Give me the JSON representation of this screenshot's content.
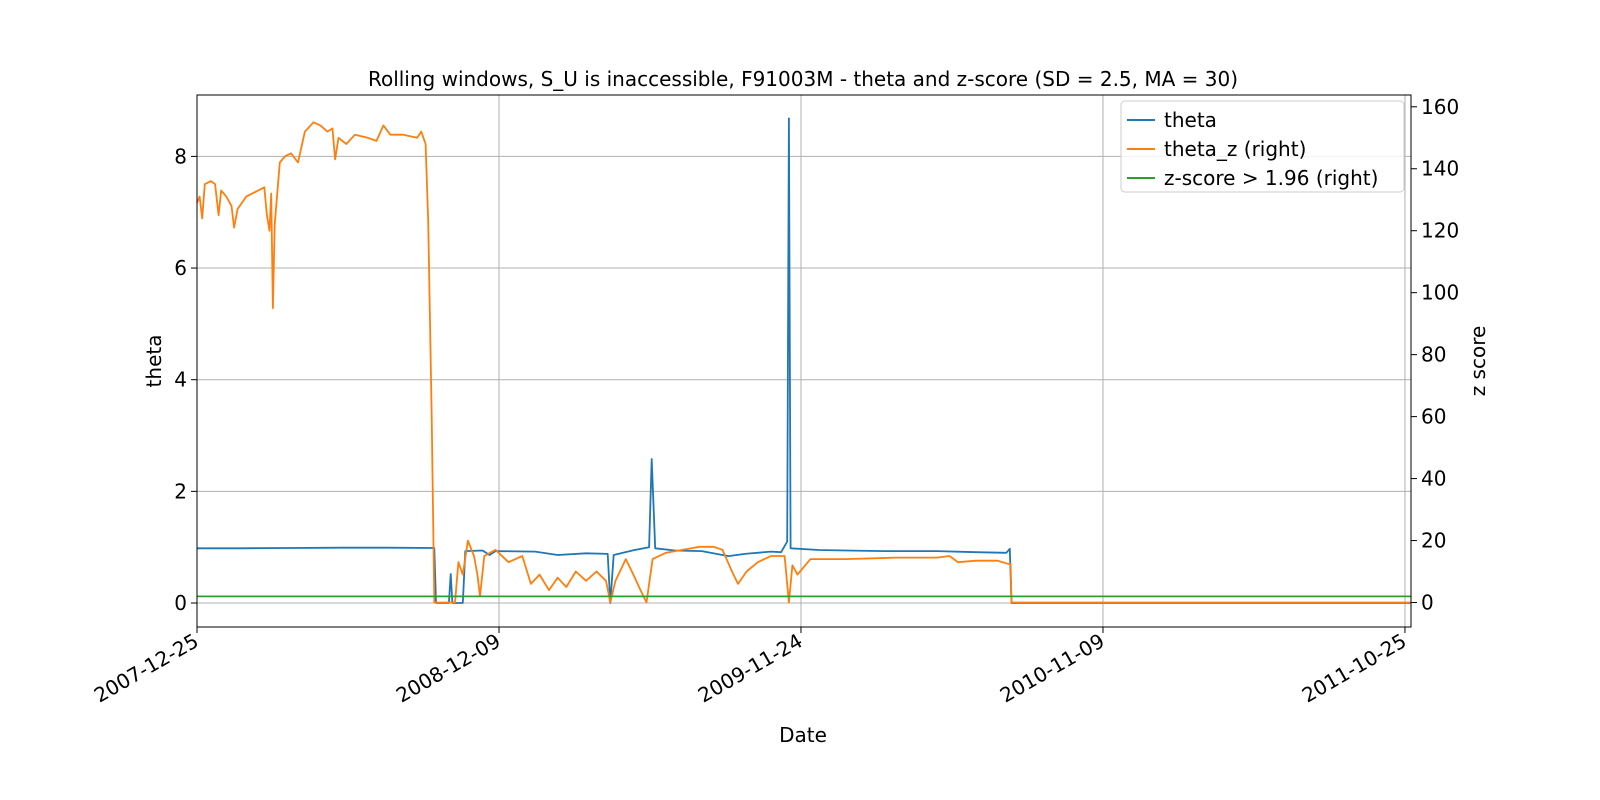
{
  "chart_data": {
    "type": "line",
    "title": "Rolling windows, S_U is inaccessible, F91003M - theta and z-score (SD = 2.5, MA = 30)",
    "xlabel": "Date",
    "ylabel_left": "theta",
    "ylabel_right": "z score",
    "x_ticks": [
      "2007-12-25",
      "2008-12-09",
      "2009-11-24",
      "2010-11-09",
      "2011-10-25"
    ],
    "x_range": [
      "2007-12-25",
      "2011-11-01"
    ],
    "y_left_ticks": [
      "0",
      "2",
      "4",
      "6",
      "8"
    ],
    "y_left_range": [
      -0.43,
      9.1
    ],
    "y_right_ticks": [
      "0",
      "20",
      "40",
      "60",
      "80",
      "100",
      "120",
      "140",
      "160"
    ],
    "y_right_range": [
      -7.9,
      163.8
    ],
    "grid": true,
    "legend_position": "top-right",
    "colors": {
      "theta": "#1f77b4",
      "theta_z": "#ff7f0e",
      "threshold": "#2ca02c"
    },
    "series": [
      {
        "name": "theta",
        "axis": "left",
        "points": [
          [
            "2007-12-25",
            0.98
          ],
          [
            "2008-02-10",
            0.98
          ],
          [
            "2008-04-10",
            0.985
          ],
          [
            "2008-06-10",
            0.99
          ],
          [
            "2008-08-01",
            0.99
          ],
          [
            "2008-09-25",
            0.985
          ],
          [
            "2008-09-27",
            0.0
          ],
          [
            "2008-10-12",
            0.0
          ],
          [
            "2008-10-14",
            0.52
          ],
          [
            "2008-10-16",
            0.0
          ],
          [
            "2008-10-28",
            0.0
          ],
          [
            "2008-10-31",
            0.93
          ],
          [
            "2008-11-20",
            0.94
          ],
          [
            "2008-11-28",
            0.86
          ],
          [
            "2008-12-05",
            0.93
          ],
          [
            "2009-01-20",
            0.92
          ],
          [
            "2009-02-15",
            0.86
          ],
          [
            "2009-03-20",
            0.89
          ],
          [
            "2009-04-14",
            0.88
          ],
          [
            "2009-04-17",
            0.0
          ],
          [
            "2009-04-21",
            0.86
          ],
          [
            "2009-05-15",
            0.95
          ],
          [
            "2009-06-01",
            1.0
          ],
          [
            "2009-06-04",
            2.58
          ],
          [
            "2009-06-08",
            0.98
          ],
          [
            "2009-07-01",
            0.94
          ],
          [
            "2009-08-01",
            0.93
          ],
          [
            "2009-09-01",
            0.84
          ],
          [
            "2009-09-20",
            0.88
          ],
          [
            "2009-10-20",
            0.92
          ],
          [
            "2009-11-01",
            0.91
          ],
          [
            "2009-11-08",
            1.1
          ],
          [
            "2009-11-10",
            8.68
          ],
          [
            "2009-11-12",
            0.98
          ],
          [
            "2009-12-15",
            0.95
          ],
          [
            "2010-01-15",
            0.94
          ],
          [
            "2010-03-01",
            0.93
          ],
          [
            "2010-05-01",
            0.93
          ],
          [
            "2010-06-15",
            0.91
          ],
          [
            "2010-07-20",
            0.9
          ],
          [
            "2010-07-24",
            0.97
          ],
          [
            "2010-07-26",
            0.0
          ],
          [
            "2011-11-01",
            0.0
          ]
        ]
      },
      {
        "name": "theta_z (right)",
        "axis": "right",
        "points": [
          [
            "2007-12-25",
            129
          ],
          [
            "2007-12-28",
            131
          ],
          [
            "2007-12-31",
            124
          ],
          [
            "2008-01-03",
            135
          ],
          [
            "2008-01-10",
            136
          ],
          [
            "2008-01-15",
            135
          ],
          [
            "2008-01-19",
            125
          ],
          [
            "2008-01-22",
            133
          ],
          [
            "2008-01-28",
            131
          ],
          [
            "2008-02-03",
            128
          ],
          [
            "2008-02-06",
            121
          ],
          [
            "2008-02-10",
            127
          ],
          [
            "2008-02-20",
            131
          ],
          [
            "2008-03-05",
            133
          ],
          [
            "2008-03-12",
            134
          ],
          [
            "2008-03-15",
            125
          ],
          [
            "2008-03-18",
            120
          ],
          [
            "2008-03-20",
            132
          ],
          [
            "2008-03-22",
            95
          ],
          [
            "2008-03-24",
            122
          ],
          [
            "2008-03-30",
            142
          ],
          [
            "2008-04-05",
            144
          ],
          [
            "2008-04-12",
            145
          ],
          [
            "2008-04-20",
            142
          ],
          [
            "2008-04-28",
            152
          ],
          [
            "2008-05-08",
            155
          ],
          [
            "2008-05-16",
            154
          ],
          [
            "2008-05-24",
            152
          ],
          [
            "2008-05-30",
            153
          ],
          [
            "2008-06-02",
            143
          ],
          [
            "2008-06-06",
            150
          ],
          [
            "2008-06-15",
            148
          ],
          [
            "2008-06-25",
            151
          ],
          [
            "2008-07-10",
            150
          ],
          [
            "2008-07-20",
            149
          ],
          [
            "2008-07-28",
            154
          ],
          [
            "2008-08-05",
            151
          ],
          [
            "2008-08-20",
            151
          ],
          [
            "2008-09-05",
            150
          ],
          [
            "2008-09-10",
            152
          ],
          [
            "2008-09-15",
            148
          ],
          [
            "2008-09-18",
            123
          ],
          [
            "2008-09-22",
            60
          ],
          [
            "2008-09-25",
            0
          ],
          [
            "2008-10-19",
            0
          ],
          [
            "2008-10-23",
            13
          ],
          [
            "2008-10-28",
            9
          ],
          [
            "2008-11-03",
            20
          ],
          [
            "2008-11-10",
            15
          ],
          [
            "2008-11-14",
            9
          ],
          [
            "2008-11-17",
            2
          ],
          [
            "2008-11-22",
            15
          ],
          [
            "2008-12-05",
            17
          ],
          [
            "2008-12-20",
            13
          ],
          [
            "2009-01-05",
            15
          ],
          [
            "2009-01-15",
            6
          ],
          [
            "2009-01-25",
            9
          ],
          [
            "2009-02-05",
            4
          ],
          [
            "2009-02-15",
            8
          ],
          [
            "2009-02-25",
            5
          ],
          [
            "2009-03-08",
            10
          ],
          [
            "2009-03-20",
            7
          ],
          [
            "2009-04-01",
            10
          ],
          [
            "2009-04-12",
            7
          ],
          [
            "2009-04-17",
            0
          ],
          [
            "2009-04-23",
            7
          ],
          [
            "2009-05-05",
            14
          ],
          [
            "2009-05-12",
            10
          ],
          [
            "2009-05-22",
            4
          ],
          [
            "2009-05-29",
            0
          ],
          [
            "2009-06-05",
            14
          ],
          [
            "2009-06-20",
            16
          ],
          [
            "2009-07-10",
            17
          ],
          [
            "2009-07-30",
            18
          ],
          [
            "2009-08-15",
            18
          ],
          [
            "2009-08-25",
            17
          ],
          [
            "2009-09-05",
            10
          ],
          [
            "2009-09-12",
            6
          ],
          [
            "2009-09-22",
            10
          ],
          [
            "2009-10-05",
            13
          ],
          [
            "2009-10-20",
            15
          ],
          [
            "2009-11-05",
            15
          ],
          [
            "2009-11-08",
            6
          ],
          [
            "2009-11-10",
            0
          ],
          [
            "2009-11-14",
            12
          ],
          [
            "2009-11-20",
            9
          ],
          [
            "2009-12-05",
            14
          ],
          [
            "2010-01-15",
            14
          ],
          [
            "2010-03-15",
            14.5
          ],
          [
            "2010-05-01",
            14.5
          ],
          [
            "2010-05-15",
            15
          ],
          [
            "2010-05-25",
            13
          ],
          [
            "2010-06-15",
            13.5
          ],
          [
            "2010-07-10",
            13.5
          ],
          [
            "2010-07-22",
            12.5
          ],
          [
            "2010-07-25",
            12.5
          ],
          [
            "2010-07-26",
            0
          ],
          [
            "2011-11-01",
            0
          ]
        ]
      },
      {
        "name": "z-score > 1.96 (right)",
        "axis": "right",
        "points": [
          [
            "2007-12-25",
            1.96
          ],
          [
            "2011-11-01",
            1.96
          ]
        ]
      }
    ]
  }
}
